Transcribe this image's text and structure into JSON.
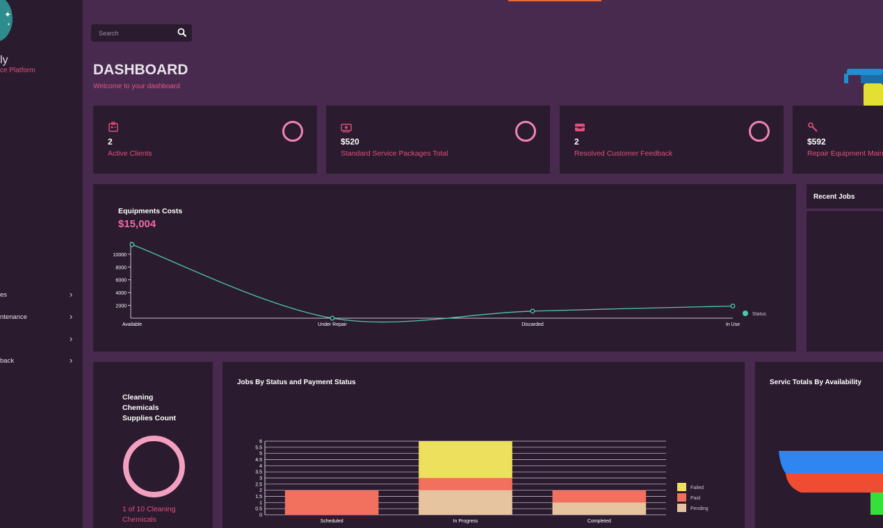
{
  "brand": {
    "name": "ly",
    "tagline": "ce Platform"
  },
  "sidebar": {
    "items": [
      {
        "label": "es"
      },
      {
        "label": "ntenance"
      },
      {
        "label": ""
      },
      {
        "label": "back"
      }
    ]
  },
  "search": {
    "placeholder": "Search"
  },
  "header": {
    "title": "DASHBOARD",
    "subtitle": "Welcome to your dashboard"
  },
  "stats": [
    {
      "value": "2",
      "label": "Active Clients",
      "icon": "id-badge-icon"
    },
    {
      "value": "$520",
      "label": "Standard Service Packages Total",
      "icon": "money-icon"
    },
    {
      "value": "2",
      "label": "Resolved Customer Feedback",
      "icon": "inbox-icon"
    },
    {
      "value": "$592",
      "label": "Repair Equipment Main",
      "icon": "wrench-icon"
    }
  ],
  "equipment": {
    "title": "Equipments Costs",
    "total": "$15,004",
    "chart_data": {
      "type": "line",
      "categories": [
        "Available",
        "Under Repair",
        "Discarded",
        "In Use"
      ],
      "values": [
        11500,
        0,
        1100,
        1900
      ],
      "yticks": [
        2000,
        4000,
        6000,
        8000,
        10000
      ],
      "ylim": [
        0,
        11500
      ],
      "legend": "Status",
      "color": "#4cc9b0"
    }
  },
  "recent_jobs": {
    "title": "Recent Jobs"
  },
  "cleaning": {
    "title": "Cleaning Chemicals Supplies Count",
    "footer": "1 of 10 Cleaning Chemicals"
  },
  "jobs_chart": {
    "title": "Jobs By Status and Payment Status",
    "chart_data": {
      "type": "bar",
      "stacked": true,
      "categories": [
        "Scheduled",
        "In Progress",
        "Completed"
      ],
      "series": [
        {
          "name": "Pending",
          "values": [
            0,
            2,
            1
          ],
          "color": "#e7c4a0"
        },
        {
          "name": "Paid",
          "values": [
            2,
            1,
            1
          ],
          "color": "#f2705e"
        },
        {
          "name": "Failed",
          "values": [
            0,
            3,
            0
          ],
          "color": "#ece05c"
        }
      ],
      "legend_order": [
        "Failed",
        "Paid",
        "Pending"
      ],
      "yticks": [
        "0",
        "0.5",
        "1",
        "1.5",
        "2",
        "2.5",
        "3",
        "3.5",
        "4",
        "4.5",
        "5",
        "5.5",
        "6"
      ],
      "ylim": [
        0,
        6
      ]
    }
  },
  "service_totals": {
    "title": "Servic Totals By Availability"
  }
}
